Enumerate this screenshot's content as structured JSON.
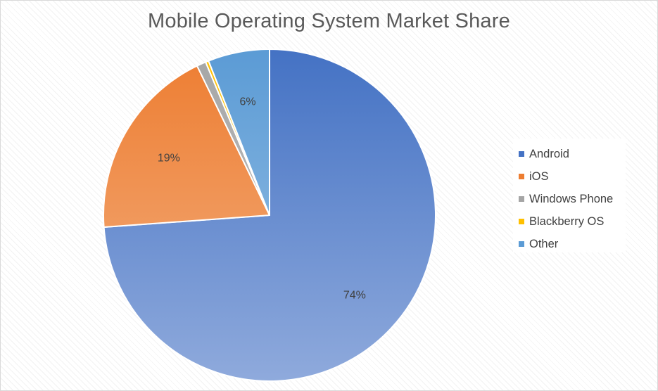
{
  "chart_data": {
    "type": "pie",
    "title": "Mobile Operating System Market Share",
    "categories": [
      "Android",
      "iOS",
      "Windows Phone",
      "Blackberry OS",
      "Other"
    ],
    "values": [
      74,
      19,
      0.9,
      0.3,
      6
    ],
    "data_labels": [
      "74%",
      "19%",
      "",
      "",
      "6%"
    ],
    "colors": [
      "#4472c4",
      "#ed7d31",
      "#a5a5a5",
      "#ffc000",
      "#5b9bd5"
    ],
    "gradient_light_colors": [
      "#8faadc",
      "#f4b183",
      "#c9c9c9",
      "#ffd966",
      "#9dc3e6"
    ],
    "legend_position": "right",
    "start_angle": "top"
  }
}
